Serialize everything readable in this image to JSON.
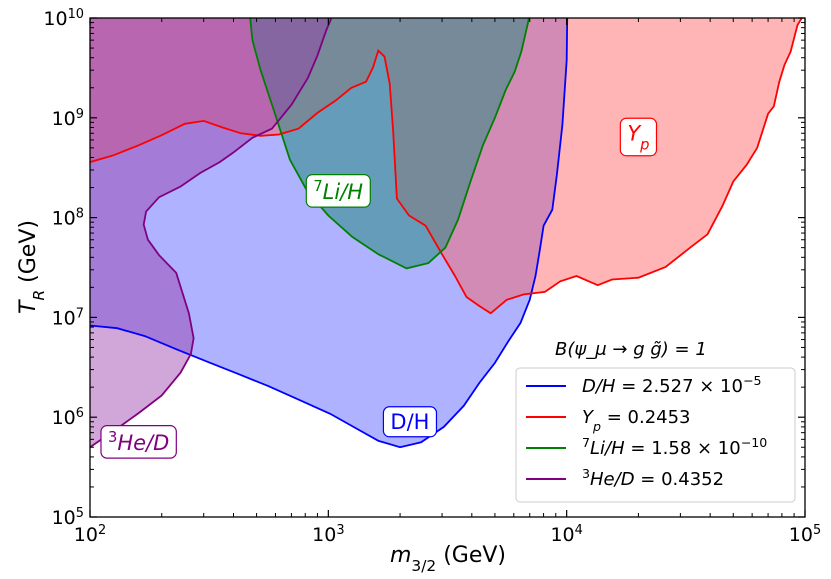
{
  "chart_data": {
    "type": "area",
    "xscale": "log",
    "yscale": "log",
    "xlim": [
      100,
      100000
    ],
    "ylim": [
      100000,
      10000000000
    ],
    "xlabel": {
      "base": "m",
      "sub": "3/2",
      "unit": "(GeV)"
    },
    "ylabel": {
      "base": "T",
      "sub": "R",
      "unit": "(GeV)"
    },
    "x_ticks": [
      {
        "value": 100,
        "base": "10",
        "exp": "2"
      },
      {
        "value": 1000,
        "base": "10",
        "exp": "3"
      },
      {
        "value": 10000,
        "base": "10",
        "exp": "4"
      },
      {
        "value": 100000,
        "base": "10",
        "exp": "5"
      }
    ],
    "y_ticks": [
      {
        "value": 100000,
        "base": "10",
        "exp": "5"
      },
      {
        "value": 1000000,
        "base": "10",
        "exp": "6"
      },
      {
        "value": 10000000,
        "base": "10",
        "exp": "7"
      },
      {
        "value": 100000000,
        "base": "10",
        "exp": "8"
      },
      {
        "value": 1000000000,
        "base": "10",
        "exp": "9"
      },
      {
        "value": 10000000000,
        "base": "10",
        "exp": "10"
      }
    ],
    "annotation": "B(ψ_μ → g g̃) = 1",
    "series": [
      {
        "name": "D/H",
        "legend": "D/H = 2.527 × 10^-5",
        "region_label": "D/H",
        "line_color": "#0000ff",
        "fill_color": "#6b73ff",
        "fill_opacity": 0.55,
        "label_at": [
          2200,
          900000
        ],
        "points": [
          [
            100,
            8300000.0
          ],
          [
            130,
            7800000.0
          ],
          [
            170,
            6500000.0
          ],
          [
            230,
            4800000.0
          ],
          [
            320,
            3500000.0
          ],
          [
            420,
            2700000.0
          ],
          [
            560,
            2050000.0
          ],
          [
            760,
            1480000.0
          ],
          [
            1020,
            1080000.0
          ],
          [
            1300,
            780000.0
          ],
          [
            1620,
            580000.0
          ],
          [
            2000,
            500000.0
          ],
          [
            2450,
            560000.0
          ],
          [
            3050,
            800000.0
          ],
          [
            3700,
            1300000.0
          ],
          [
            4300,
            2200000.0
          ],
          [
            5000,
            3500000.0
          ],
          [
            5700,
            5800000.0
          ],
          [
            6400,
            8800000.0
          ],
          [
            7000,
            15000000.0
          ],
          [
            7400,
            26000000.0
          ],
          [
            7700,
            46000000.0
          ],
          [
            8000,
            83000000.0
          ],
          [
            8700,
            120000000.0
          ],
          [
            9100,
            270000000.0
          ],
          [
            9600,
            850000000.0
          ],
          [
            10000,
            3800000000.0
          ],
          [
            10050,
            10000000000.0
          ],
          [
            100,
            10000000000.0
          ]
        ]
      },
      {
        "name": "Yp",
        "legend": "Y_p = 0.2453",
        "region_label": "Y_p",
        "line_color": "#ff0000",
        "fill_color": "#ff5a5a",
        "fill_opacity": 0.45,
        "label_at": [
          20000,
          700000000
        ],
        "points": [
          [
            100,
            360000000.0
          ],
          [
            125,
            420000000.0
          ],
          [
            160,
            530000000.0
          ],
          [
            200,
            670000000.0
          ],
          [
            250,
            870000000.0
          ],
          [
            300,
            930000000.0
          ],
          [
            360,
            800000000.0
          ],
          [
            430,
            700000000.0
          ],
          [
            520,
            660000000.0
          ],
          [
            620,
            680000000.0
          ],
          [
            750,
            780000000.0
          ],
          [
            900,
            1120000000.0
          ],
          [
            1070,
            1480000000.0
          ],
          [
            1250,
            2000000000.0
          ],
          [
            1440,
            2300000000.0
          ],
          [
            1540,
            3200000000.0
          ],
          [
            1620,
            4700000000.0
          ],
          [
            1720,
            4100000000.0
          ],
          [
            1810,
            2200000000.0
          ],
          [
            1870,
            750000000.0
          ],
          [
            1940,
            155000000.0
          ],
          [
            2180,
            105000000.0
          ],
          [
            2560,
            83000000.0
          ],
          [
            3000,
            43000000.0
          ],
          [
            3400,
            26000000.0
          ],
          [
            3800,
            16000000.0
          ],
          [
            4300,
            13000000.0
          ],
          [
            4800,
            11000000.0
          ],
          [
            5600,
            15000000.0
          ],
          [
            6600,
            17000000.0
          ],
          [
            8100,
            18000000.0
          ],
          [
            9400,
            23000000.0
          ],
          [
            11000,
            26000000.0
          ],
          [
            13500,
            21000000.0
          ],
          [
            15500,
            24000000.0
          ],
          [
            20000,
            25000000.0
          ],
          [
            26000,
            32000000.0
          ],
          [
            33000,
            50000000.0
          ],
          [
            39000,
            68000000.0
          ],
          [
            45000,
            130000000.0
          ],
          [
            50000,
            230000000.0
          ],
          [
            57000,
            340000000.0
          ],
          [
            63000,
            500000000.0
          ],
          [
            70000,
            1100000000.0
          ],
          [
            74000,
            1300000000.0
          ],
          [
            78000,
            2300000000.0
          ],
          [
            82000,
            3400000000.0
          ],
          [
            87000,
            4600000000.0
          ],
          [
            93000,
            8500000000.0
          ],
          [
            97000,
            10000000000.0
          ],
          [
            100,
            10000000000.0
          ]
        ]
      },
      {
        "name": "Li7H",
        "legend": "^7Li/H = 1.58 × 10^-10",
        "region_label": "^7Li/H",
        "line_color": "#008000",
        "fill_color": "#2a8a82",
        "fill_opacity": 0.55,
        "label_at": [
          1100,
          180000000
        ],
        "points": [
          [
            470,
            10000000000.0
          ],
          [
            480,
            6000000000.0
          ],
          [
            520,
            3000000000.0
          ],
          [
            590,
            1200000000.0
          ],
          [
            690,
            380000000.0
          ],
          [
            820,
            180000000.0
          ],
          [
            1000,
            105000000.0
          ],
          [
            1260,
            64000000.0
          ],
          [
            1620,
            43000000.0
          ],
          [
            2130,
            31000000.0
          ],
          [
            2630,
            35000000.0
          ],
          [
            3100,
            50000000.0
          ],
          [
            3500,
            95000000.0
          ],
          [
            3950,
            230000000.0
          ],
          [
            4450,
            530000000.0
          ],
          [
            5000,
            1000000000.0
          ],
          [
            5550,
            1900000000.0
          ],
          [
            6050,
            2900000000.0
          ],
          [
            6450,
            4600000000.0
          ],
          [
            6850,
            8500000000.0
          ],
          [
            6950,
            10000000000.0
          ]
        ]
      },
      {
        "name": "He3D",
        "legend": "^3He/D = 0.4352",
        "region_label": "^3He/D",
        "line_color": "#800080",
        "fill_color": "#9a3aa8",
        "fill_opacity": 0.45,
        "label_at": [
          160,
          550000
        ],
        "points": [
          [
            100,
            500000.0
          ],
          [
            125,
            720000.0
          ],
          [
            160,
            1100000.0
          ],
          [
            200,
            1650000.0
          ],
          [
            240,
            2800000.0
          ],
          [
            265,
            4300000.0
          ],
          [
            272,
            6200000.0
          ],
          [
            260,
            11000000.0
          ],
          [
            230,
            28000000.0
          ],
          [
            195,
            42000000.0
          ],
          [
            175,
            60000000.0
          ],
          [
            168,
            85000000.0
          ],
          [
            172,
            115000000.0
          ],
          [
            195,
            160000000.0
          ],
          [
            240,
            205000000.0
          ],
          [
            290,
            280000000.0
          ],
          [
            350,
            360000000.0
          ],
          [
            400,
            450000000.0
          ],
          [
            480,
            630000000.0
          ],
          [
            580,
            780000000.0
          ],
          [
            700,
            1350000000.0
          ],
          [
            820,
            2500000000.0
          ],
          [
            900,
            4200000000.0
          ],
          [
            980,
            7500000000.0
          ],
          [
            1030,
            10000000000.0
          ],
          [
            100,
            10000000000.0
          ]
        ]
      }
    ]
  }
}
